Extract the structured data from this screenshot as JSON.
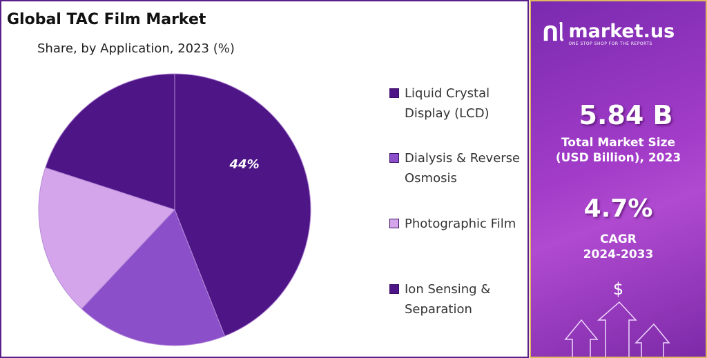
{
  "title": "Global TAC Film Market",
  "subtitle": "Share, by Application, 2023 (%)",
  "chart_data": {
    "type": "pie",
    "title": "Global TAC Film Market",
    "subtitle": "Share, by Application, 2023 (%)",
    "categories": [
      "Liquid Crystal Display (LCD)",
      "Dialysis & Reverse Osmosis",
      "Photographic Film",
      "Ion Sensing & Separation"
    ],
    "values": [
      44,
      18,
      18,
      20
    ],
    "data_labels": [
      "44%",
      "",
      "",
      ""
    ],
    "colors": [
      "#4d1585",
      "#8a4fc9",
      "#d4a5ea",
      "#4d1585"
    ],
    "legend_position": "right"
  },
  "legend": [
    {
      "line1": "Liquid Crystal",
      "line2": "Display (LCD)"
    },
    {
      "line1": "Dialysis & Reverse",
      "line2": "Osmosis"
    },
    {
      "line1": "Photographic Film",
      "line2": ""
    },
    {
      "line1": "Ion Sensing &",
      "line2": "Separation"
    }
  ],
  "panel": {
    "logo_text": "market.us",
    "logo_tagline": "ONE STOP SHOP FOR THE REPORTS",
    "market_size": "5.84 B",
    "market_size_label1": "Total Market Size",
    "market_size_label2": "(USD Billion), 2023",
    "cagr": "4.7%",
    "cagr_label1": "CAGR",
    "cagr_label2": "2024-2033",
    "dollar": "$"
  }
}
